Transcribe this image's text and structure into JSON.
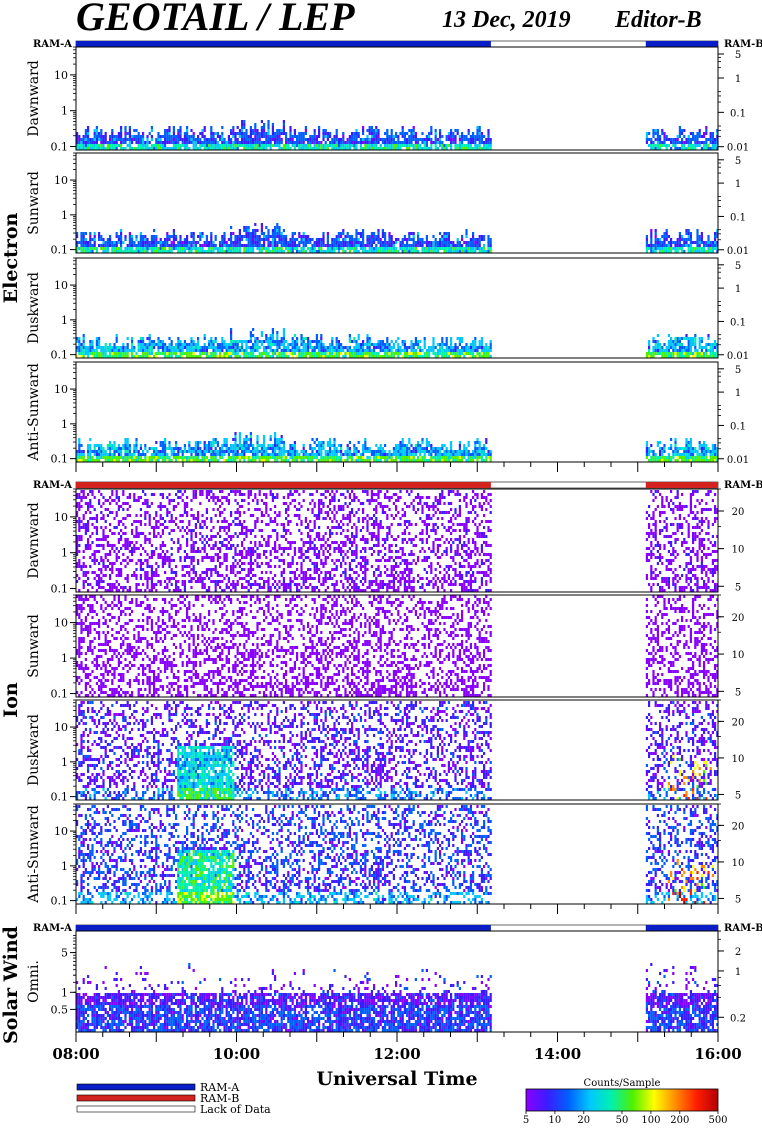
{
  "header": {
    "title": "GEOTAIL / LEP",
    "date": "13 Dec, 2019",
    "editor": "Editor-B"
  },
  "chart_data": {
    "type": "heatmap",
    "xaxis": {
      "label": "Universal Time",
      "ticks": [
        "08:00",
        "10:00",
        "12:00",
        "14:00",
        "16:00"
      ],
      "range_hours": [
        8,
        16
      ]
    },
    "data_gaps_hours": [
      [
        13.17,
        15.1
      ]
    ],
    "groups": [
      {
        "name": "Electron",
        "ram_left": "RAM-A",
        "ram_right": "RAM-B",
        "ram_bar": {
          "color": "#0a1ec8",
          "segments_hours": [
            [
              8.0,
              13.17
            ],
            [
              15.1,
              16.0
            ]
          ]
        },
        "panels": [
          {
            "label": "Dawnward",
            "left_ticks": [
              "10",
              "1",
              "0.1"
            ],
            "left_range": [
              0.08,
              60
            ],
            "right_ticks": [
              "5",
              "1",
              "0.1",
              "0.01"
            ],
            "right_range": [
              0.008,
              8
            ],
            "mean_counts": 14
          },
          {
            "label": "Sunward",
            "left_ticks": [
              "10",
              "1",
              "0.1"
            ],
            "left_range": [
              0.08,
              60
            ],
            "right_ticks": [
              "5",
              "1",
              "0.1",
              "0.01"
            ],
            "right_range": [
              0.008,
              8
            ],
            "mean_counts": 14
          },
          {
            "label": "Duskward",
            "left_ticks": [
              "10",
              "1",
              "0.1"
            ],
            "left_range": [
              0.08,
              60
            ],
            "right_ticks": [
              "5",
              "1",
              "0.1",
              "0.01"
            ],
            "right_range": [
              0.008,
              8
            ],
            "mean_counts": 22
          },
          {
            "label": "Anti-Sunward",
            "left_ticks": [
              "10",
              "1",
              "0.1"
            ],
            "left_range": [
              0.08,
              60
            ],
            "right_ticks": [
              "5",
              "1",
              "0.1",
              "0.01"
            ],
            "right_range": [
              0.008,
              8
            ],
            "mean_counts": 22
          }
        ]
      },
      {
        "name": "Ion",
        "ram_left": "RAM-A",
        "ram_right": "RAM-B",
        "ram_bar": {
          "color": "#d2231e",
          "segments_hours": [
            [
              8.0,
              13.17
            ],
            [
              15.1,
              16.0
            ]
          ]
        },
        "panels": [
          {
            "label": "Dawnward",
            "left_ticks": [
              "10",
              "1",
              "0.1"
            ],
            "left_range": [
              0.08,
              60
            ],
            "right_ticks": [
              "20",
              "10",
              "5"
            ],
            "right_range": [
              4.5,
              30
            ],
            "mean_counts": 6
          },
          {
            "label": "Sunward",
            "left_ticks": [
              "10",
              "1",
              "0.1"
            ],
            "left_range": [
              0.08,
              60
            ],
            "right_ticks": [
              "20",
              "10",
              "5"
            ],
            "right_range": [
              4.5,
              30
            ],
            "mean_counts": 5
          },
          {
            "label": "Duskward",
            "left_ticks": [
              "10",
              "1",
              "0.1"
            ],
            "left_range": [
              0.08,
              60
            ],
            "right_ticks": [
              "20",
              "10",
              "5"
            ],
            "right_range": [
              4.5,
              30
            ],
            "mean_counts": 9
          },
          {
            "label": "Anti-Sunward",
            "left_ticks": [
              "10",
              "1",
              "0.1"
            ],
            "left_range": [
              0.08,
              60
            ],
            "right_ticks": [
              "20",
              "10",
              "5"
            ],
            "right_range": [
              4.5,
              30
            ],
            "mean_counts": 12
          }
        ]
      },
      {
        "name": "Solar Wind",
        "ram_left": "RAM-A",
        "ram_right": "RAM-B",
        "ram_bar": {
          "color": "#0a1ec8",
          "segments_hours": [
            [
              8.0,
              13.17
            ],
            [
              15.1,
              16.0
            ]
          ]
        },
        "panels": [
          {
            "label": "Omni.",
            "left_ticks": [
              "5",
              "1",
              "0.5"
            ],
            "left_range": [
              0.2,
              12
            ],
            "right_ticks": [
              "2",
              "1",
              "0.2"
            ],
            "right_range": [
              0.12,
              4
            ],
            "mean_counts": 9
          }
        ]
      }
    ],
    "legend": {
      "items": [
        {
          "label": "RAM-A",
          "color": "#0a1ec8"
        },
        {
          "label": "RAM-B",
          "color": "#d2231e"
        },
        {
          "label": "Lack of Data",
          "color": "#ffffff"
        }
      ]
    },
    "colorbar": {
      "title": "Counts/Sample",
      "ticks": [
        "5",
        "10",
        "20",
        "50",
        "100",
        "200",
        "500"
      ],
      "range": [
        5,
        500
      ],
      "scale": "log",
      "colors": [
        "#8a00ff",
        "#3a1cff",
        "#0060ff",
        "#00c8ff",
        "#00f0b0",
        "#50f000",
        "#ffff00",
        "#ff8c00",
        "#ff1e00",
        "#b40000"
      ]
    }
  }
}
